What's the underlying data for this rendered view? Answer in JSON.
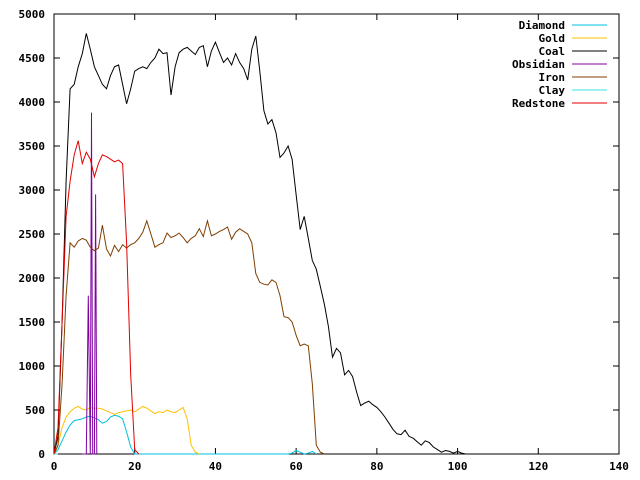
{
  "chart_data": {
    "type": "line",
    "title": "",
    "xlabel": "",
    "ylabel": "",
    "xlim": [
      0,
      140
    ],
    "ylim": [
      0,
      5000
    ],
    "x_ticks": [
      0,
      20,
      40,
      60,
      80,
      100,
      120,
      140
    ],
    "y_ticks": [
      0,
      500,
      1000,
      1500,
      2000,
      2500,
      3000,
      3500,
      4000,
      4500,
      5000
    ],
    "grid": false,
    "legend_position": "top-right",
    "series": [
      {
        "name": "Diamond",
        "color": "#00c0e0",
        "points": [
          [
            0,
            0
          ],
          [
            1,
            50
          ],
          [
            2,
            150
          ],
          [
            3,
            250
          ],
          [
            4,
            330
          ],
          [
            5,
            380
          ],
          [
            6,
            390
          ],
          [
            7,
            400
          ],
          [
            8,
            420
          ],
          [
            9,
            430
          ],
          [
            10,
            410
          ],
          [
            11,
            390
          ],
          [
            12,
            350
          ],
          [
            13,
            370
          ],
          [
            14,
            420
          ],
          [
            15,
            440
          ],
          [
            16,
            430
          ],
          [
            17,
            400
          ],
          [
            18,
            250
          ],
          [
            19,
            80
          ],
          [
            20,
            0
          ],
          [
            58,
            0
          ],
          [
            59,
            10
          ],
          [
            60,
            40
          ],
          [
            61,
            20
          ],
          [
            62,
            0
          ],
          [
            63,
            10
          ],
          [
            64,
            30
          ],
          [
            65,
            0
          ]
        ]
      },
      {
        "name": "Gold",
        "color": "#ffc000",
        "points": [
          [
            0,
            0
          ],
          [
            1,
            100
          ],
          [
            2,
            300
          ],
          [
            3,
            420
          ],
          [
            4,
            480
          ],
          [
            5,
            520
          ],
          [
            6,
            540
          ],
          [
            7,
            510
          ],
          [
            8,
            500
          ],
          [
            9,
            530
          ],
          [
            10,
            520
          ],
          [
            11,
            520
          ],
          [
            12,
            510
          ],
          [
            13,
            490
          ],
          [
            14,
            470
          ],
          [
            15,
            450
          ],
          [
            16,
            470
          ],
          [
            17,
            480
          ],
          [
            18,
            490
          ],
          [
            19,
            500
          ],
          [
            20,
            480
          ],
          [
            21,
            510
          ],
          [
            22,
            540
          ],
          [
            23,
            520
          ],
          [
            24,
            490
          ],
          [
            25,
            460
          ],
          [
            26,
            480
          ],
          [
            27,
            470
          ],
          [
            28,
            500
          ],
          [
            29,
            480
          ],
          [
            30,
            470
          ],
          [
            31,
            500
          ],
          [
            32,
            530
          ],
          [
            33,
            400
          ],
          [
            34,
            100
          ],
          [
            35,
            20
          ],
          [
            36,
            0
          ]
        ]
      },
      {
        "name": "Coal",
        "color": "#000000",
        "points": [
          [
            0,
            0
          ],
          [
            1,
            200
          ],
          [
            2,
            1500
          ],
          [
            3,
            3100
          ],
          [
            4,
            4150
          ],
          [
            5,
            4200
          ],
          [
            6,
            4400
          ],
          [
            7,
            4550
          ],
          [
            8,
            4780
          ],
          [
            9,
            4600
          ],
          [
            10,
            4400
          ],
          [
            11,
            4300
          ],
          [
            12,
            4200
          ],
          [
            13,
            4150
          ],
          [
            14,
            4300
          ],
          [
            15,
            4400
          ],
          [
            16,
            4420
          ],
          [
            17,
            4200
          ],
          [
            18,
            3980
          ],
          [
            19,
            4150
          ],
          [
            20,
            4350
          ],
          [
            21,
            4380
          ],
          [
            22,
            4400
          ],
          [
            23,
            4380
          ],
          [
            24,
            4450
          ],
          [
            25,
            4500
          ],
          [
            26,
            4600
          ],
          [
            27,
            4550
          ],
          [
            28,
            4560
          ],
          [
            29,
            4080
          ],
          [
            30,
            4400
          ],
          [
            31,
            4560
          ],
          [
            32,
            4600
          ],
          [
            33,
            4620
          ],
          [
            34,
            4580
          ],
          [
            35,
            4540
          ],
          [
            36,
            4620
          ],
          [
            37,
            4640
          ],
          [
            38,
            4400
          ],
          [
            39,
            4580
          ],
          [
            40,
            4680
          ],
          [
            41,
            4560
          ],
          [
            42,
            4450
          ],
          [
            43,
            4500
          ],
          [
            44,
            4420
          ],
          [
            45,
            4550
          ],
          [
            46,
            4450
          ],
          [
            47,
            4380
          ],
          [
            48,
            4250
          ],
          [
            49,
            4600
          ],
          [
            50,
            4750
          ],
          [
            51,
            4350
          ],
          [
            52,
            3900
          ],
          [
            53,
            3750
          ],
          [
            54,
            3800
          ],
          [
            55,
            3650
          ],
          [
            56,
            3370
          ],
          [
            57,
            3420
          ],
          [
            58,
            3500
          ],
          [
            59,
            3350
          ],
          [
            60,
            2950
          ],
          [
            61,
            2550
          ],
          [
            62,
            2700
          ],
          [
            63,
            2450
          ],
          [
            64,
            2200
          ],
          [
            65,
            2100
          ],
          [
            66,
            1900
          ],
          [
            67,
            1700
          ],
          [
            68,
            1450
          ],
          [
            69,
            1100
          ],
          [
            70,
            1200
          ],
          [
            71,
            1150
          ],
          [
            72,
            900
          ],
          [
            73,
            950
          ],
          [
            74,
            880
          ],
          [
            75,
            700
          ],
          [
            76,
            550
          ],
          [
            77,
            580
          ],
          [
            78,
            600
          ],
          [
            79,
            560
          ],
          [
            80,
            530
          ],
          [
            81,
            480
          ],
          [
            82,
            420
          ],
          [
            83,
            350
          ],
          [
            84,
            280
          ],
          [
            85,
            230
          ],
          [
            86,
            220
          ],
          [
            87,
            270
          ],
          [
            88,
            200
          ],
          [
            89,
            180
          ],
          [
            90,
            140
          ],
          [
            91,
            100
          ],
          [
            92,
            150
          ],
          [
            93,
            130
          ],
          [
            94,
            80
          ],
          [
            95,
            50
          ],
          [
            96,
            20
          ],
          [
            97,
            40
          ],
          [
            98,
            30
          ],
          [
            99,
            10
          ],
          [
            100,
            30
          ],
          [
            101,
            10
          ],
          [
            102,
            0
          ]
        ]
      },
      {
        "name": "Obsidian",
        "color": "#8000a0",
        "points": [
          [
            7,
            0
          ],
          [
            8,
            0
          ],
          [
            8.5,
            1800
          ],
          [
            9,
            0
          ],
          [
            9.3,
            3880
          ],
          [
            9.6,
            0
          ],
          [
            10,
            0
          ],
          [
            10.3,
            2950
          ],
          [
            10.6,
            0
          ]
        ]
      },
      {
        "name": "Iron",
        "color": "#7f3f00",
        "points": [
          [
            0,
            0
          ],
          [
            1,
            100
          ],
          [
            2,
            800
          ],
          [
            3,
            1800
          ],
          [
            4,
            2400
          ],
          [
            5,
            2350
          ],
          [
            6,
            2420
          ],
          [
            7,
            2450
          ],
          [
            8,
            2430
          ],
          [
            9,
            2350
          ],
          [
            10,
            2310
          ],
          [
            11,
            2340
          ],
          [
            12,
            2600
          ],
          [
            13,
            2330
          ],
          [
            14,
            2250
          ],
          [
            15,
            2370
          ],
          [
            16,
            2300
          ],
          [
            17,
            2380
          ],
          [
            18,
            2340
          ],
          [
            19,
            2380
          ],
          [
            20,
            2400
          ],
          [
            21,
            2450
          ],
          [
            22,
            2520
          ],
          [
            23,
            2650
          ],
          [
            24,
            2500
          ],
          [
            25,
            2350
          ],
          [
            26,
            2380
          ],
          [
            27,
            2400
          ],
          [
            28,
            2510
          ],
          [
            29,
            2460
          ],
          [
            30,
            2480
          ],
          [
            31,
            2510
          ],
          [
            32,
            2460
          ],
          [
            33,
            2400
          ],
          [
            34,
            2450
          ],
          [
            35,
            2480
          ],
          [
            36,
            2560
          ],
          [
            37,
            2470
          ],
          [
            38,
            2650
          ],
          [
            39,
            2480
          ],
          [
            40,
            2500
          ],
          [
            41,
            2530
          ],
          [
            42,
            2550
          ],
          [
            43,
            2580
          ],
          [
            44,
            2440
          ],
          [
            45,
            2520
          ],
          [
            46,
            2560
          ],
          [
            47,
            2530
          ],
          [
            48,
            2500
          ],
          [
            49,
            2400
          ],
          [
            50,
            2050
          ],
          [
            51,
            1950
          ],
          [
            52,
            1930
          ],
          [
            53,
            1920
          ],
          [
            54,
            1980
          ],
          [
            55,
            1950
          ],
          [
            56,
            1800
          ],
          [
            57,
            1560
          ],
          [
            58,
            1550
          ],
          [
            59,
            1500
          ],
          [
            60,
            1350
          ],
          [
            61,
            1230
          ],
          [
            62,
            1250
          ],
          [
            63,
            1230
          ],
          [
            64,
            800
          ],
          [
            65,
            100
          ],
          [
            66,
            20
          ],
          [
            67,
            0
          ]
        ]
      },
      {
        "name": "Clay",
        "color": "#40e0e0",
        "points": [
          [
            0,
            0
          ],
          [
            1,
            0
          ]
        ]
      },
      {
        "name": "Redstone",
        "color": "#e00000",
        "points": [
          [
            0,
            0
          ],
          [
            1,
            300
          ],
          [
            2,
            1500
          ],
          [
            3,
            2700
          ],
          [
            4,
            3100
          ],
          [
            5,
            3400
          ],
          [
            6,
            3560
          ],
          [
            7,
            3300
          ],
          [
            8,
            3430
          ],
          [
            9,
            3350
          ],
          [
            10,
            3150
          ],
          [
            11,
            3300
          ],
          [
            12,
            3400
          ],
          [
            13,
            3380
          ],
          [
            14,
            3350
          ],
          [
            15,
            3320
          ],
          [
            16,
            3340
          ],
          [
            17,
            3300
          ],
          [
            18,
            2400
          ],
          [
            19,
            900
          ],
          [
            20,
            50
          ],
          [
            21,
            0
          ]
        ]
      }
    ]
  }
}
